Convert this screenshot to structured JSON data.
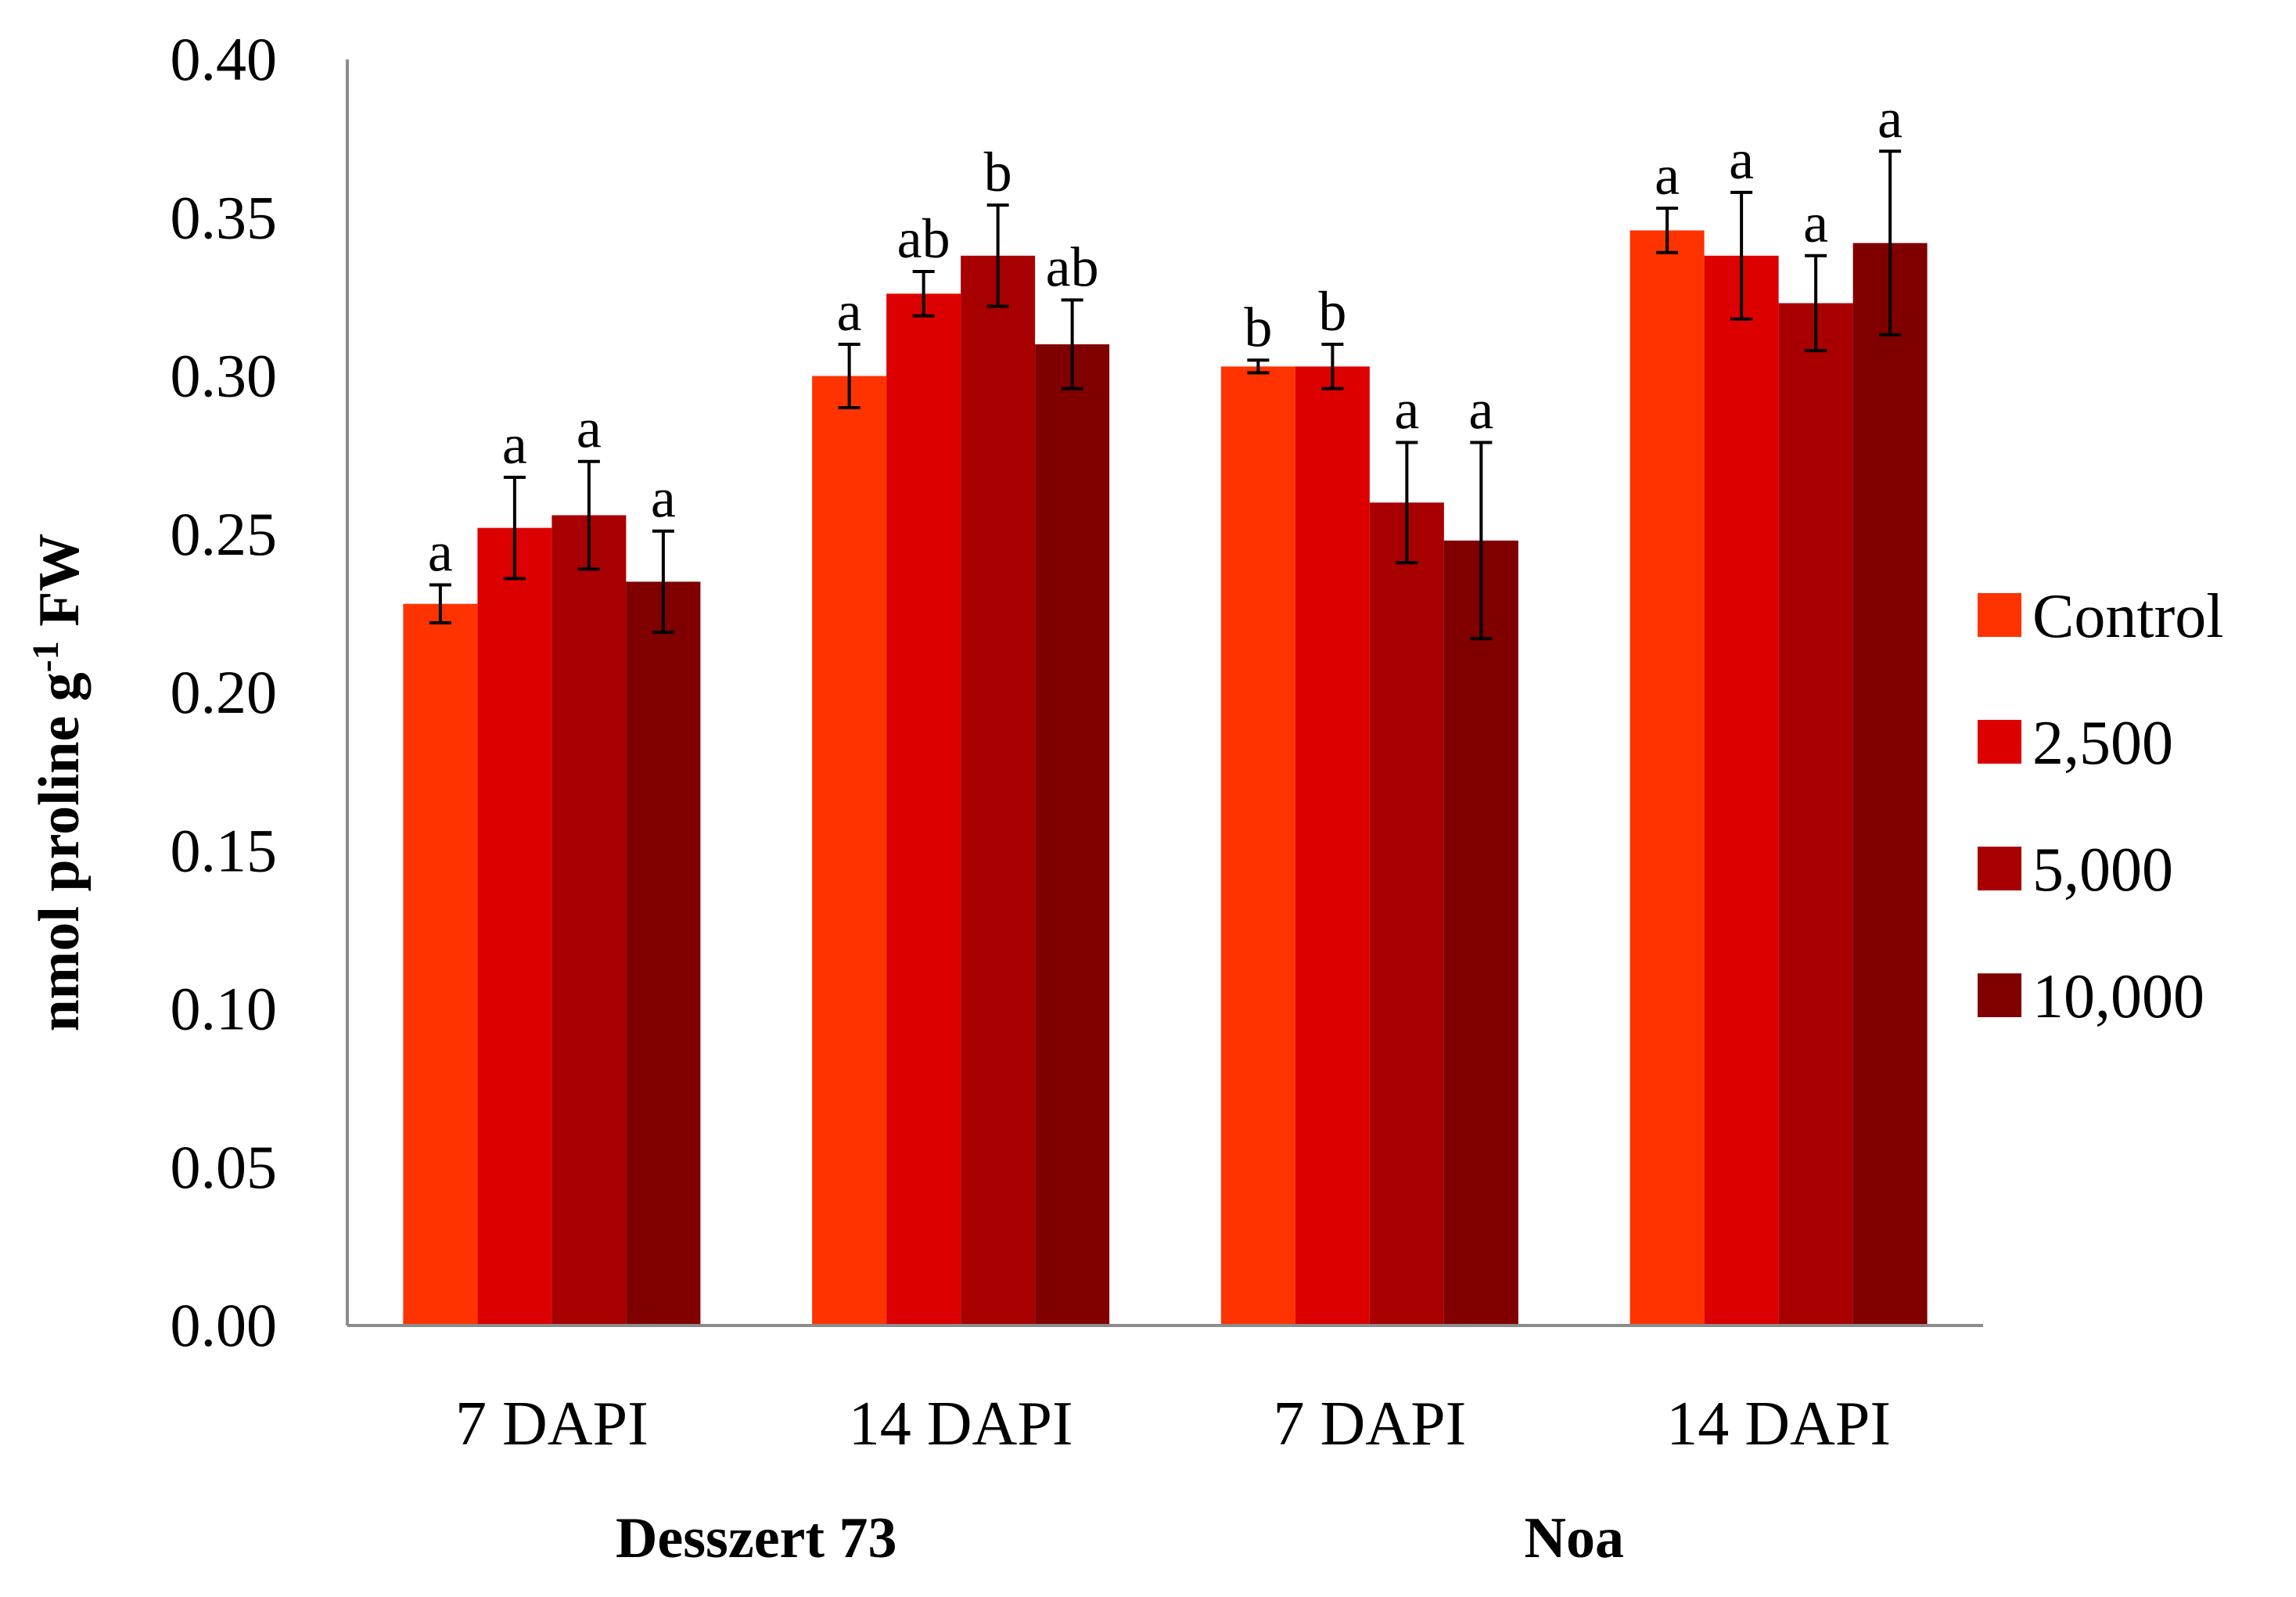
{
  "chart_data": {
    "type": "bar",
    "title": "",
    "xlabel": "",
    "ylabel": {
      "main": "nmol proline g",
      "superscript": "-1",
      "suffix": " FW"
    },
    "ylim": [
      0,
      0.4
    ],
    "yticks": [
      "0.00",
      "0.05",
      "0.10",
      "0.15",
      "0.20",
      "0.25",
      "0.30",
      "0.35",
      "0.40"
    ],
    "grid": false,
    "legend_position": "right",
    "groups": [
      {
        "name": "Desszert 73",
        "categories": [
          "7 DAPI",
          "14 DAPI"
        ]
      },
      {
        "name": "Noa",
        "categories": [
          "7 DAPI",
          "14 DAPI"
        ]
      }
    ],
    "categories": [
      "7 DAPI",
      "14 DAPI",
      "7 DAPI",
      "14 DAPI"
    ],
    "series": [
      {
        "name": "Control",
        "color": "#FF3300",
        "values": [
          0.228,
          0.3,
          0.303,
          0.346
        ],
        "errors": [
          0.006,
          0.01,
          0.002,
          0.007
        ],
        "letters": [
          "a",
          "a",
          "b",
          "a"
        ]
      },
      {
        "name": "2,500",
        "color": "#DD0000",
        "values": [
          0.252,
          0.326,
          0.303,
          0.338
        ],
        "errors": [
          0.016,
          0.007,
          0.007,
          0.02
        ],
        "letters": [
          "a",
          "ab",
          "b",
          "a"
        ]
      },
      {
        "name": "5,000",
        "color": "#A80000",
        "values": [
          0.256,
          0.338,
          0.26,
          0.323
        ],
        "errors": [
          0.017,
          0.016,
          0.019,
          0.015
        ],
        "letters": [
          "a",
          "b",
          "a",
          "a"
        ]
      },
      {
        "name": "10,000",
        "color": "#800000",
        "values": [
          0.235,
          0.31,
          0.248,
          0.342
        ],
        "errors": [
          0.016,
          0.014,
          0.031,
          0.029
        ],
        "letters": [
          "a",
          "ab",
          "a",
          "a"
        ]
      }
    ]
  }
}
